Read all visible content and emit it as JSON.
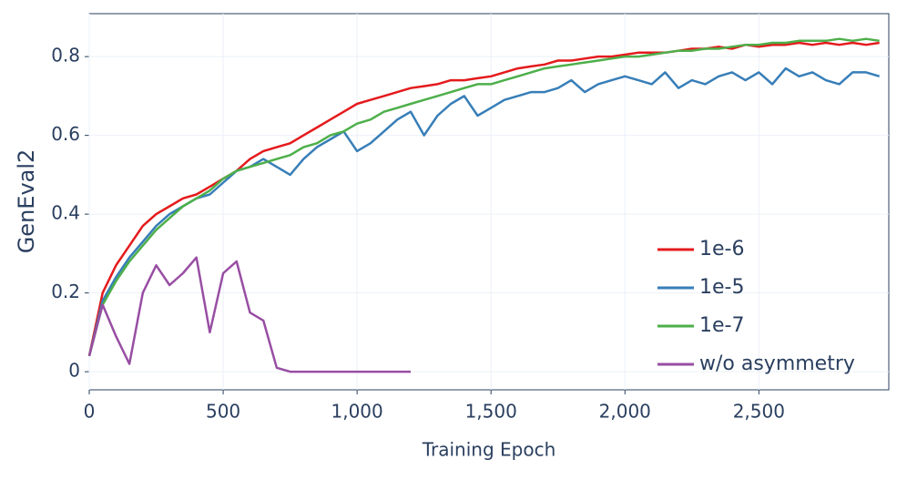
{
  "chart_data": {
    "type": "line",
    "x_label": "Training Epoch",
    "y_label": "GenEval2",
    "x": [
      0,
      50,
      100,
      150,
      200,
      250,
      300,
      350,
      400,
      450,
      500,
      550,
      600,
      650,
      700,
      750,
      800,
      850,
      900,
      950,
      1000,
      1050,
      1100,
      1150,
      1200,
      1250,
      1300,
      1350,
      1400,
      1450,
      1500,
      1550,
      1600,
      1650,
      1700,
      1750,
      1800,
      1850,
      1900,
      1950,
      2000,
      2050,
      2100,
      2150,
      2200,
      2250,
      2300,
      2350,
      2400,
      2450,
      2500,
      2550,
      2600,
      2650,
      2700,
      2750,
      2800,
      2850,
      2900,
      2950
    ],
    "series": [
      {
        "name": "1e-6",
        "color": "#e41a1c",
        "values": [
          0.04,
          0.2,
          0.27,
          0.32,
          0.37,
          0.4,
          0.42,
          0.44,
          0.45,
          0.47,
          0.49,
          0.51,
          0.54,
          0.56,
          0.57,
          0.58,
          0.6,
          0.62,
          0.64,
          0.66,
          0.68,
          0.69,
          0.7,
          0.71,
          0.72,
          0.725,
          0.73,
          0.74,
          0.74,
          0.745,
          0.75,
          0.76,
          0.77,
          0.775,
          0.78,
          0.79,
          0.79,
          0.795,
          0.8,
          0.8,
          0.805,
          0.81,
          0.81,
          0.81,
          0.815,
          0.82,
          0.82,
          0.825,
          0.82,
          0.83,
          0.825,
          0.83,
          0.83,
          0.835,
          0.83,
          0.835,
          0.83,
          0.835,
          0.83,
          0.835
        ]
      },
      {
        "name": "1e-5",
        "color": "#377eb8",
        "values": [
          0.04,
          0.18,
          0.24,
          0.29,
          0.33,
          0.37,
          0.4,
          0.42,
          0.44,
          0.45,
          0.48,
          0.51,
          0.52,
          0.54,
          0.52,
          0.5,
          0.54,
          0.57,
          0.59,
          0.61,
          0.56,
          0.58,
          0.61,
          0.64,
          0.66,
          0.6,
          0.65,
          0.68,
          0.7,
          0.65,
          0.67,
          0.69,
          0.7,
          0.71,
          0.71,
          0.72,
          0.74,
          0.71,
          0.73,
          0.74,
          0.75,
          0.74,
          0.73,
          0.76,
          0.72,
          0.74,
          0.73,
          0.75,
          0.76,
          0.74,
          0.76,
          0.73,
          0.77,
          0.75,
          0.76,
          0.74,
          0.73,
          0.76,
          0.76,
          0.75
        ]
      },
      {
        "name": "1e-7",
        "color": "#4daf4a",
        "values": [
          0.04,
          0.17,
          0.23,
          0.28,
          0.32,
          0.36,
          0.39,
          0.42,
          0.44,
          0.46,
          0.49,
          0.51,
          0.52,
          0.53,
          0.54,
          0.55,
          0.57,
          0.58,
          0.6,
          0.61,
          0.63,
          0.64,
          0.66,
          0.67,
          0.68,
          0.69,
          0.7,
          0.71,
          0.72,
          0.73,
          0.73,
          0.74,
          0.75,
          0.76,
          0.77,
          0.775,
          0.78,
          0.785,
          0.79,
          0.795,
          0.8,
          0.8,
          0.805,
          0.81,
          0.815,
          0.815,
          0.82,
          0.82,
          0.825,
          0.83,
          0.83,
          0.835,
          0.835,
          0.84,
          0.84,
          0.84,
          0.845,
          0.84,
          0.845,
          0.84
        ]
      },
      {
        "name": "w/o asymmetry",
        "color": "#984ea3",
        "values": [
          0.04,
          0.17,
          0.09,
          0.02,
          0.2,
          0.27,
          0.22,
          0.25,
          0.29,
          0.1,
          0.25,
          0.28,
          0.15,
          0.13,
          0.01,
          0,
          0,
          0,
          0,
          0,
          0,
          0,
          0,
          0,
          0,
          null,
          null,
          null,
          null,
          null,
          null,
          null,
          null,
          null,
          null,
          null,
          null,
          null,
          null,
          null,
          null,
          null,
          null,
          null,
          null,
          null,
          null,
          null,
          null,
          null,
          null,
          null,
          null,
          null,
          null,
          null,
          null,
          null,
          null,
          null
        ]
      }
    ],
    "xlim": [
      0,
      2985
    ],
    "ylim": [
      -0.046,
      0.909
    ],
    "xticks": [
      0,
      500,
      {
        "value": 1000,
        "label": "1,000"
      },
      {
        "value": 1500,
        "label": "1,500"
      },
      {
        "value": 2000,
        "label": "2,000"
      },
      {
        "value": 2500,
        "label": "2,500"
      }
    ],
    "yticks": [
      0,
      0.2,
      0.4,
      0.6,
      0.8
    ],
    "grid": true,
    "legend_position": "bottom-right"
  }
}
